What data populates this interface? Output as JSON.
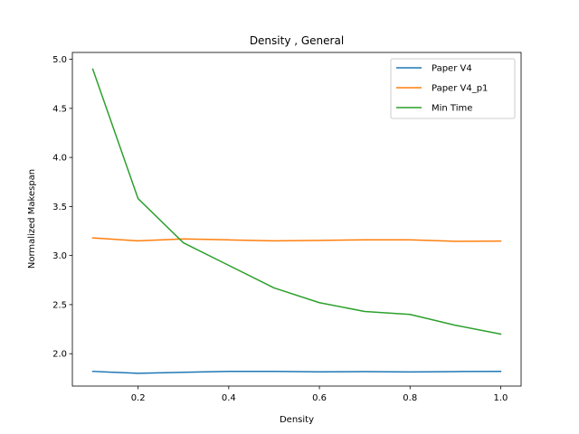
{
  "chart_data": {
    "type": "line",
    "title": "Density , General",
    "xlabel": "Density",
    "ylabel": "Normalized Makespan",
    "x": [
      0.1,
      0.2,
      0.3,
      0.4,
      0.5,
      0.6,
      0.7,
      0.8,
      0.9,
      1.0
    ],
    "xlim": [
      0.055,
      1.045
    ],
    "ylim": [
      1.67,
      5.07
    ],
    "xticks": [
      0.2,
      0.4,
      0.6,
      0.8,
      1.0
    ],
    "xtick_labels": [
      "0.2",
      "0.4",
      "0.6",
      "0.8",
      "1.0"
    ],
    "yticks": [
      2.0,
      2.5,
      3.0,
      3.5,
      4.0,
      4.5,
      5.0
    ],
    "ytick_labels": [
      "2.0",
      "2.5",
      "3.0",
      "3.5",
      "4.0",
      "4.5",
      "5.0"
    ],
    "grid": false,
    "legend_position": "top-right",
    "series": [
      {
        "name": "Paper V4",
        "color": "#1f77b4",
        "values": [
          1.82,
          1.8,
          1.81,
          1.82,
          1.82,
          1.815,
          1.818,
          1.814,
          1.818,
          1.82
        ]
      },
      {
        "name": "Paper V4_p1",
        "color": "#ff7f0e",
        "values": [
          3.18,
          3.15,
          3.17,
          3.16,
          3.15,
          3.155,
          3.16,
          3.16,
          3.145,
          3.148
        ]
      },
      {
        "name": "Min Time",
        "color": "#2ca02c",
        "values": [
          4.9,
          3.58,
          3.13,
          2.9,
          2.67,
          2.52,
          2.43,
          2.4,
          2.29,
          2.2
        ]
      }
    ]
  }
}
